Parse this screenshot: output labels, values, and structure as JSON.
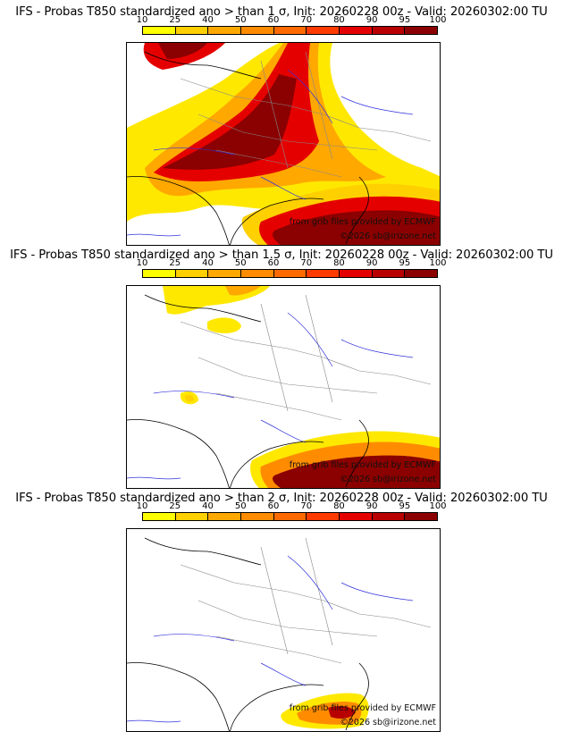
{
  "colors": [
    "#ffff00",
    "#ffd000",
    "#ffa800",
    "#ff8c00",
    "#ff6a00",
    "#ff3b00",
    "#e50000",
    "#b80000",
    "#8b0000",
    "#5a0000"
  ],
  "scale_ticks": [
    "10",
    "25",
    "40",
    "50",
    "60",
    "70",
    "80",
    "90",
    "95",
    "100"
  ],
  "credits": {
    "source": "from grib files provided by ECMWF",
    "copyright": "©2026 sb@irizone.net"
  },
  "panels": [
    {
      "title": "IFS - Probas T850  standardized ano > than 1 σ, Init: 20260228 00z - Valid: 20260302:00 TU"
    },
    {
      "title": "IFS - Probas T850  standardized ano > than 1.5 σ, Init: 20260228 00z - Valid: 20260302:00 TU"
    },
    {
      "title": "IFS - Probas T850  standardized ano > than 2 σ, Init: 20260228 00z - Valid: 20260302:00 TU"
    }
  ]
}
